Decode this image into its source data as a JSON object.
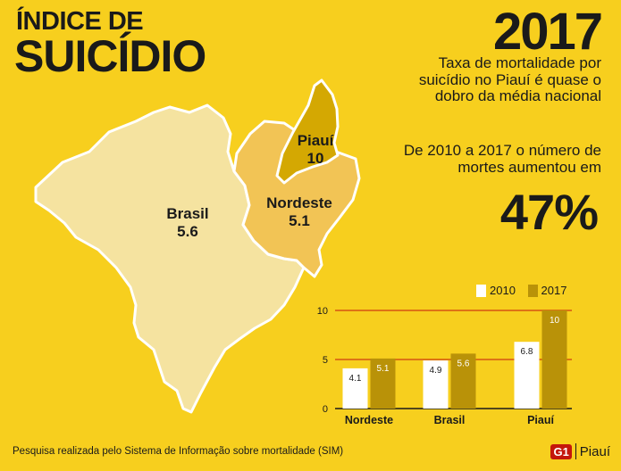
{
  "header": {
    "title_line1": "ÍNDICE DE",
    "title_line2": "SUICÍDIO",
    "year": "2017",
    "description_1": "Taxa de mortalidade por suicídio no Piauí é quase o dobro da média nacional",
    "description_2": "De 2010 a 2017 o número de mortes aumentou em",
    "percent": "47%"
  },
  "map": {
    "brasil": {
      "name": "Brasil",
      "value": "5.6"
    },
    "nordeste": {
      "name": "Nordeste",
      "value": "5.1"
    },
    "piaui": {
      "name": "Piauí",
      "value": "10"
    },
    "colors": {
      "brasil": "#f5e3a0",
      "nordeste": "#f2c455",
      "piaui": "#d4a802",
      "stroke": "#ffffff"
    }
  },
  "legend": {
    "items": [
      {
        "label": "2010",
        "color": "#ffffff"
      },
      {
        "label": "2017",
        "color": "#b99208"
      }
    ]
  },
  "footer": {
    "source": "Pesquisa realizada pelo Sistema de Informação sobre mortalidade (SIM)"
  },
  "logo": {
    "brand": "G1",
    "region": "Piauí"
  },
  "chart_data": {
    "type": "bar",
    "categories": [
      "Nordeste",
      "Brasil",
      "Piauí"
    ],
    "series": [
      {
        "name": "2010",
        "values": [
          4.1,
          4.9,
          6.8
        ],
        "labels": [
          "4.1",
          "4.9",
          "6.8"
        ],
        "color": "#ffffff"
      },
      {
        "name": "2017",
        "values": [
          5.1,
          5.6,
          10
        ],
        "labels": [
          "5.1",
          "5.6",
          "10"
        ],
        "color": "#b99208"
      }
    ],
    "yticks": [
      0,
      5,
      10
    ],
    "ylim": [
      0,
      10
    ],
    "grid_color": "#c4170c",
    "legend_position": "top-right"
  }
}
